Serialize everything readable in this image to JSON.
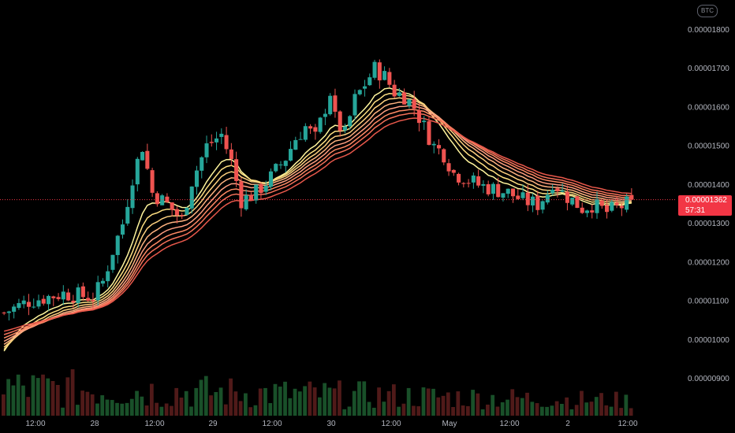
{
  "currency_badge": "BTC",
  "last_price": {
    "value_label": "0.00001362",
    "countdown": "57:31",
    "value": 1.362e-05
  },
  "colors": {
    "background": "#000000",
    "up": "#26a69a",
    "down": "#ef5350",
    "last_price_line": "#f23645",
    "ribbon": [
      "#fff59d",
      "#ffe082",
      "#ffd180",
      "#ffb380",
      "#ff9e80",
      "#ff8a65",
      "#f4715a",
      "#e8584b"
    ]
  },
  "chart_data": {
    "type": "candlestick",
    "title": "",
    "xlabel": "",
    "ylabel": "",
    "grid": false,
    "ylim": [
      8.6e-06,
      1.85e-05
    ],
    "y_ticks": [
      "0.00001800",
      "0.00001700",
      "0.00001600",
      "0.00001500",
      "0.00001400",
      "0.00001300",
      "0.00001200",
      "0.00001100",
      "0.00001000",
      "0.00000900"
    ],
    "x_ticks": [
      "12:00",
      "28",
      "12:00",
      "29",
      "12:00",
      "30",
      "12:00",
      "May",
      "12:00",
      "2",
      "12:00"
    ],
    "close_path": [
      [
        0,
        1.07
      ],
      [
        5,
        1.1
      ],
      [
        12,
        1.12
      ],
      [
        18,
        1.11
      ],
      [
        20,
        1.15
      ],
      [
        22,
        1.23
      ],
      [
        24,
        1.3
      ],
      [
        26,
        1.42
      ],
      [
        28,
        1.5
      ],
      [
        30,
        1.38
      ],
      [
        33,
        1.35
      ],
      [
        36,
        1.31
      ],
      [
        38,
        1.41
      ],
      [
        41,
        1.5
      ],
      [
        44,
        1.53
      ],
      [
        46,
        1.46
      ],
      [
        48,
        1.36
      ],
      [
        51,
        1.38
      ],
      [
        54,
        1.42
      ],
      [
        57,
        1.47
      ],
      [
        59,
        1.52
      ],
      [
        61,
        1.55
      ],
      [
        63,
        1.52
      ],
      [
        65,
        1.6
      ],
      [
        66,
        1.64
      ],
      [
        67,
        1.57
      ],
      [
        69,
        1.53
      ],
      [
        71,
        1.62
      ],
      [
        73,
        1.66
      ],
      [
        75,
        1.7
      ],
      [
        77,
        1.68
      ],
      [
        79,
        1.64
      ],
      [
        81,
        1.63
      ],
      [
        83,
        1.6
      ],
      [
        85,
        1.55
      ],
      [
        87,
        1.5
      ],
      [
        89,
        1.48
      ],
      [
        91,
        1.43
      ],
      [
        93,
        1.42
      ],
      [
        96,
        1.4
      ],
      [
        99,
        1.39
      ],
      [
        102,
        1.38
      ],
      [
        105,
        1.36
      ],
      [
        108,
        1.35
      ],
      [
        110,
        1.38
      ],
      [
        111,
        1.41
      ],
      [
        113,
        1.38
      ],
      [
        115,
        1.36
      ],
      [
        117,
        1.34
      ],
      [
        119,
        1.35
      ],
      [
        122,
        1.33
      ],
      [
        124,
        1.34
      ],
      [
        126,
        1.35
      ],
      [
        127,
        1.36
      ]
    ],
    "ribbon": {
      "type": "ema",
      "periods": [
        10,
        13,
        16,
        19,
        22,
        25,
        28,
        32
      ]
    }
  }
}
